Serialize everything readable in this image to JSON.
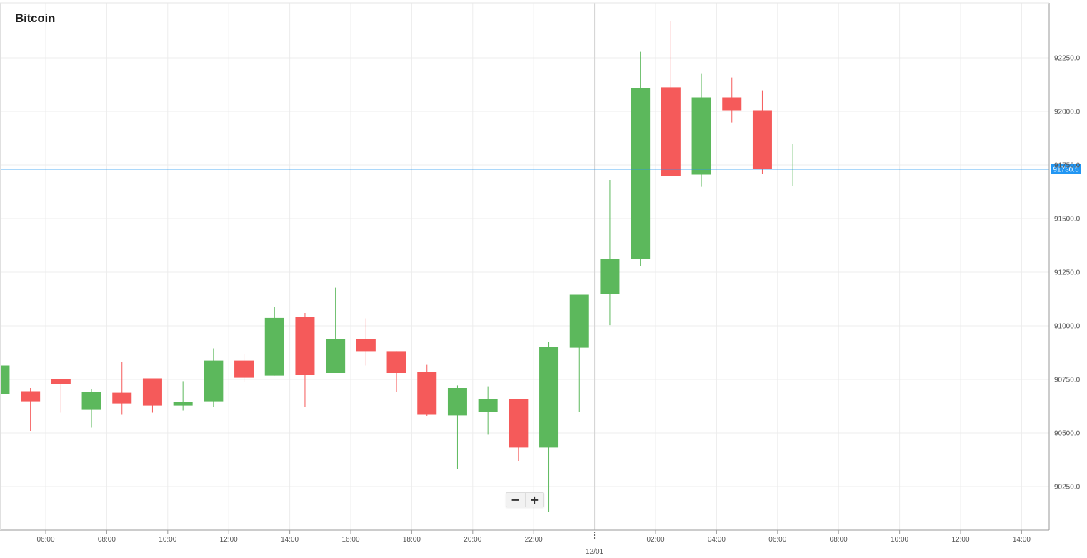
{
  "title": "Bitcoin",
  "controls": {
    "zoom_out": "−",
    "zoom_in": "+"
  },
  "colors": {
    "up": "#5cb85c",
    "down": "#f55a5a",
    "price_line": "#2196f3",
    "grid": "#ececec",
    "axis": "#9a9a9a"
  },
  "chart_data": {
    "type": "candlestick",
    "title": "Bitcoin",
    "xlabel": "",
    "ylabel": "",
    "ylim": [
      90050,
      92450
    ],
    "y_ticks": [
      90250,
      90500,
      90750,
      91000,
      91250,
      91500,
      91750,
      92000,
      92250
    ],
    "y_tick_labels": [
      "90250.0",
      "90500.0",
      "90750.0",
      "91000.0",
      "91250.0",
      "91500.0",
      "91750.0",
      "92000.0",
      "92250.0"
    ],
    "x_ticks": [
      {
        "t": 6,
        "label": "06:00"
      },
      {
        "t": 8,
        "label": "08:00"
      },
      {
        "t": 10,
        "label": "10:00"
      },
      {
        "t": 12,
        "label": "12:00"
      },
      {
        "t": 14,
        "label": "14:00"
      },
      {
        "t": 16,
        "label": "16:00"
      },
      {
        "t": 18,
        "label": "18:00"
      },
      {
        "t": 20,
        "label": "20:00"
      },
      {
        "t": 22,
        "label": "22:00"
      },
      {
        "t": 26,
        "label": "02:00"
      },
      {
        "t": 28,
        "label": "04:00"
      },
      {
        "t": 30,
        "label": "06:00"
      },
      {
        "t": 32,
        "label": "08:00"
      },
      {
        "t": 34,
        "label": "10:00"
      },
      {
        "t": 36,
        "label": "12:00"
      },
      {
        "t": 38,
        "label": "14:00"
      }
    ],
    "day_marker": {
      "t": 24,
      "label": "12/01"
    },
    "current_price": 91730.5,
    "current_price_label": "91730.5",
    "candles": [
      {
        "t": 4.5,
        "o": 90682,
        "h": 90820,
        "l": 90655,
        "c": 90815
      },
      {
        "t": 5.5,
        "o": 90695,
        "h": 90710,
        "l": 90510,
        "c": 90648
      },
      {
        "t": 6.5,
        "o": 90752,
        "h": 90740,
        "l": 90595,
        "c": 90730
      },
      {
        "t": 7.5,
        "o": 90608,
        "h": 90705,
        "l": 90525,
        "c": 90690
      },
      {
        "t": 8.5,
        "o": 90688,
        "h": 90830,
        "l": 90585,
        "c": 90638
      },
      {
        "t": 9.5,
        "o": 90755,
        "h": 90755,
        "l": 90595,
        "c": 90628
      },
      {
        "t": 10.5,
        "o": 90628,
        "h": 90742,
        "l": 90605,
        "c": 90645
      },
      {
        "t": 11.5,
        "o": 90648,
        "h": 90895,
        "l": 90622,
        "c": 90838
      },
      {
        "t": 12.5,
        "o": 90838,
        "h": 90870,
        "l": 90740,
        "c": 90758
      },
      {
        "t": 13.5,
        "o": 90768,
        "h": 91090,
        "l": 90768,
        "c": 91037
      },
      {
        "t": 14.5,
        "o": 91042,
        "h": 91060,
        "l": 90620,
        "c": 90770
      },
      {
        "t": 15.5,
        "o": 90780,
        "h": 91178,
        "l": 90780,
        "c": 90940
      },
      {
        "t": 16.5,
        "o": 90940,
        "h": 91035,
        "l": 90815,
        "c": 90882
      },
      {
        "t": 17.5,
        "o": 90882,
        "h": 90882,
        "l": 90692,
        "c": 90780
      },
      {
        "t": 18.5,
        "o": 90785,
        "h": 90818,
        "l": 90580,
        "c": 90585
      },
      {
        "t": 19.5,
        "o": 90582,
        "h": 90722,
        "l": 90330,
        "c": 90710
      },
      {
        "t": 20.5,
        "o": 90597,
        "h": 90718,
        "l": 90492,
        "c": 90660
      },
      {
        "t": 21.5,
        "o": 90660,
        "h": 90660,
        "l": 90370,
        "c": 90432
      },
      {
        "t": 22.5,
        "o": 90432,
        "h": 90925,
        "l": 90132,
        "c": 90900
      },
      {
        "t": 23.5,
        "o": 90898,
        "h": 91145,
        "l": 90598,
        "c": 91145
      },
      {
        "t": 24.5,
        "o": 91150,
        "h": 91680,
        "l": 91003,
        "c": 91312
      },
      {
        "t": 25.5,
        "o": 91312,
        "h": 92278,
        "l": 91278,
        "c": 92110
      },
      {
        "t": 26.5,
        "o": 92112,
        "h": 92420,
        "l": 91700,
        "c": 91700
      },
      {
        "t": 27.5,
        "o": 91705,
        "h": 92178,
        "l": 91648,
        "c": 92065
      },
      {
        "t": 28.5,
        "o": 92065,
        "h": 92158,
        "l": 91948,
        "c": 92005
      },
      {
        "t": 29.5,
        "o": 92005,
        "h": 92098,
        "l": 91708,
        "c": 91730
      },
      {
        "t": 30.5,
        "o": 91730,
        "h": 91850,
        "l": 91650,
        "c": 91730
      }
    ]
  }
}
